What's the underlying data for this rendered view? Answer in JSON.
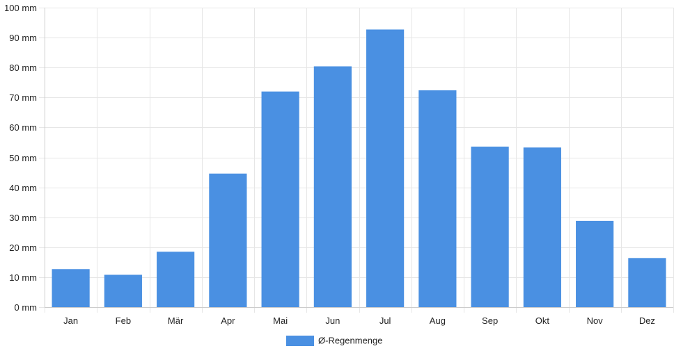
{
  "chart_data": {
    "type": "bar",
    "categories": [
      "Jan",
      "Feb",
      "Mär",
      "Apr",
      "Mai",
      "Jun",
      "Jul",
      "Aug",
      "Sep",
      "Okt",
      "Nov",
      "Dez"
    ],
    "series": [
      {
        "name": "Ø-Regenmenge",
        "values": [
          12.7,
          10.8,
          18.5,
          44.6,
          72.0,
          80.4,
          92.7,
          72.4,
          53.6,
          53.3,
          28.8,
          16.4
        ]
      }
    ],
    "y_unit": "mm",
    "ylim": [
      0,
      100
    ],
    "y_ticks": [
      0,
      10,
      20,
      30,
      40,
      50,
      60,
      70,
      80,
      90,
      100
    ],
    "grid": true,
    "legend_position": "bottom",
    "colors": {
      "bar": "#4a90e2",
      "grid": "#e6e6e6",
      "axis": "#cccccc"
    }
  }
}
